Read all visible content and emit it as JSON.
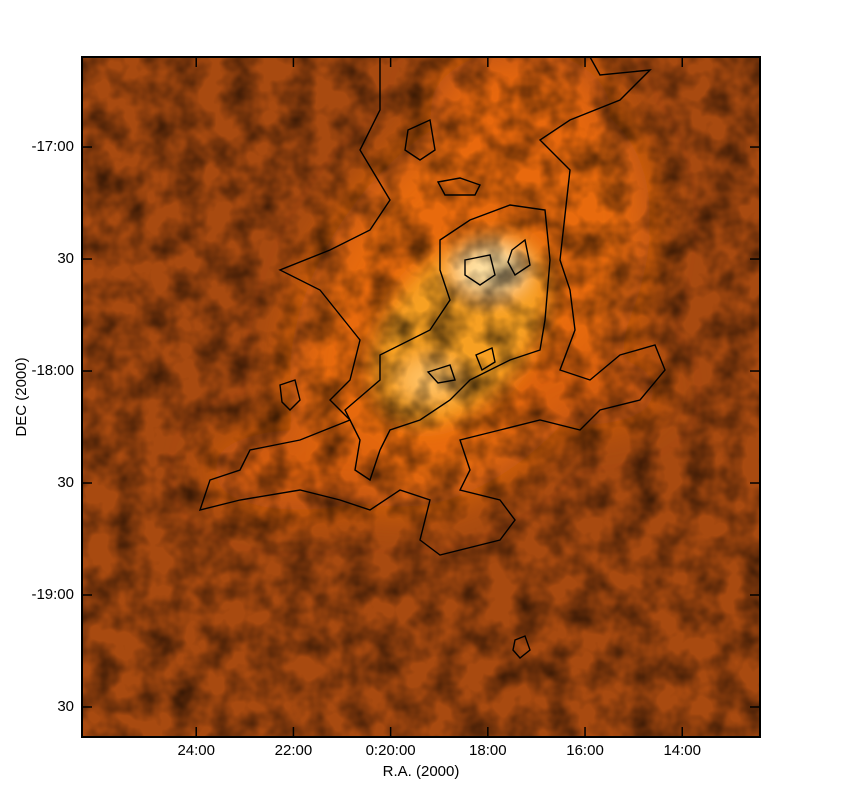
{
  "chart_data": {
    "type": "image",
    "xlabel": "R.A. (2000)",
    "ylabel": "DEC (2000)",
    "xlim": [
      26.35,
      12.4
    ],
    "xticks": [
      {
        "value": 24,
        "label": "24:00"
      },
      {
        "value": 22,
        "label": "22:00"
      },
      {
        "value": 20,
        "label": "0:20:00"
      },
      {
        "value": 18,
        "label": "18:00"
      },
      {
        "value": 16,
        "label": "16:00"
      },
      {
        "value": 14,
        "label": "14:00"
      }
    ],
    "ylim": [
      -19.634,
      -16.598
    ],
    "yticks": [
      {
        "value": -17,
        "label": "-17:00"
      },
      {
        "value": -17.5,
        "label": "30"
      },
      {
        "value": -18,
        "label": "-18:00"
      },
      {
        "value": -18.5,
        "label": "30"
      },
      {
        "value": -19,
        "label": "-19:00"
      },
      {
        "value": -19.5,
        "label": "30"
      }
    ]
  }
}
